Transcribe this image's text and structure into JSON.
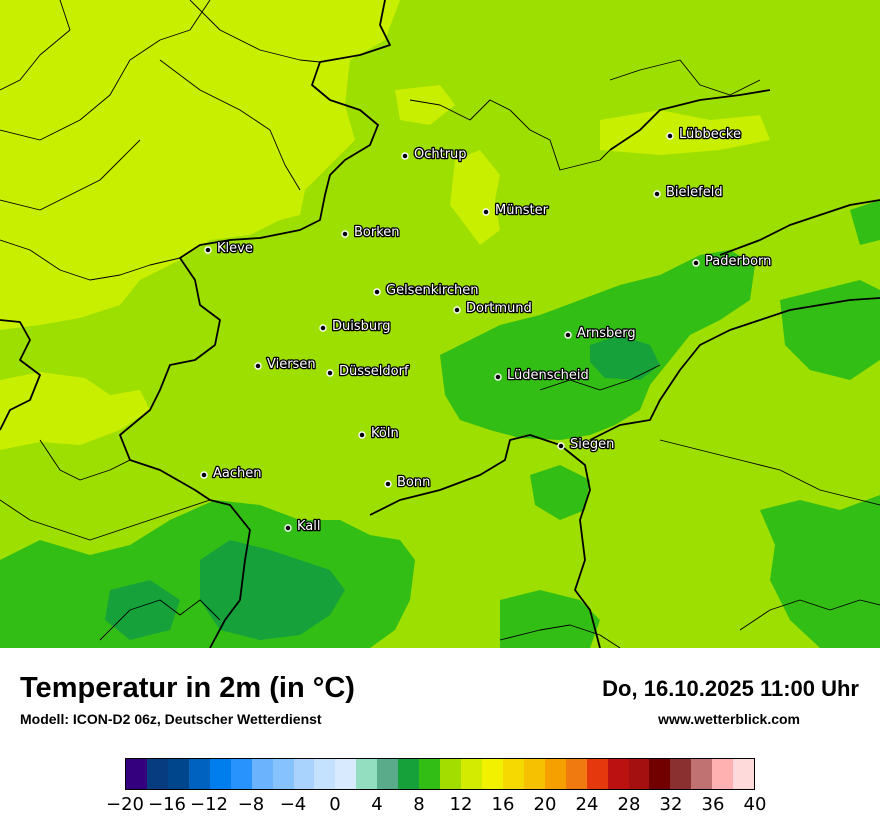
{
  "map": {
    "region": "Nordrhein-Westfalen",
    "field_colors": {
      "light": "#c8ee00",
      "mid": "#9ddf00",
      "warm_green": "#2fbe14",
      "dark": "#12a530"
    },
    "border_color": "#000000",
    "cities": [
      {
        "name": "Lübbecke"
      },
      {
        "name": "Ochtrup"
      },
      {
        "name": "Bielefeld"
      },
      {
        "name": "Münster"
      },
      {
        "name": "Borken"
      },
      {
        "name": "Kleve"
      },
      {
        "name": "Paderborn"
      },
      {
        "name": "Gelsenkirchen"
      },
      {
        "name": "Dortmund"
      },
      {
        "name": "Duisburg"
      },
      {
        "name": "Arnsberg"
      },
      {
        "name": "Viersen"
      },
      {
        "name": "Düsseldorf"
      },
      {
        "name": "Lüdenscheid"
      },
      {
        "name": "Köln"
      },
      {
        "name": "Siegen"
      },
      {
        "name": "Aachen"
      },
      {
        "name": "Bonn"
      },
      {
        "name": "Kall"
      }
    ]
  },
  "header": {
    "title": "Temperatur in 2m (in °C)",
    "model": "Modell: ICON-D2 06z, Deutscher Wetterdienst",
    "datetime": "Do, 16.10.2025 11:00 Uhr",
    "website": "www.wetterblick.com"
  },
  "legend": {
    "min": -20,
    "max": 40,
    "step": 2,
    "colors": [
      "#35007e",
      "#073c80",
      "#00468c",
      "#0062c0",
      "#007eee",
      "#2993fd",
      "#6cb3fd",
      "#86c2fd",
      "#a9d3fd",
      "#c4e1fe",
      "#d8ebfe",
      "#93dec0",
      "#5aab8a",
      "#16a13a",
      "#33be15",
      "#a3dd00",
      "#d2eb00",
      "#f2f100",
      "#f5d900",
      "#f5c100",
      "#f6a000",
      "#f17a10",
      "#e6380d",
      "#bc1111",
      "#a41010",
      "#720000",
      "#8b3031",
      "#c07171",
      "#feb1b0",
      "#ffdada"
    ],
    "tick_labels": [
      "−20",
      "−16",
      "−12",
      "−8",
      "−4",
      "0",
      "4",
      "8",
      "12",
      "16",
      "20",
      "24",
      "28",
      "32",
      "36",
      "40"
    ]
  }
}
